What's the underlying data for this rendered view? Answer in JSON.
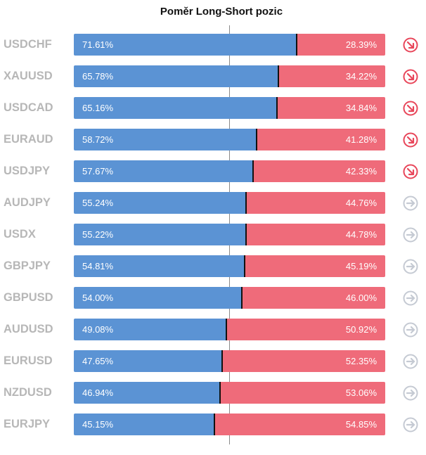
{
  "title": "Poměr Long-Short pozic",
  "colors": {
    "long": "#5b93d4",
    "short": "#ef6b7a",
    "icon_down": "#e8465a",
    "icon_neutral": "#c5cad3"
  },
  "chart_data": {
    "type": "bar",
    "title": "Poměr Long-Short pozic",
    "stacked": true,
    "orientation": "horizontal",
    "categories": [
      "USDCHF",
      "XAUUSD",
      "USDCAD",
      "EURAUD",
      "USDJPY",
      "AUDJPY",
      "USDX",
      "GBPJPY",
      "GBPUSD",
      "AUDUSD",
      "EURUSD",
      "NZDUSD",
      "EURJPY"
    ],
    "series": [
      {
        "values": [
          71.61,
          65.78,
          65.16,
          58.72,
          57.67,
          55.24,
          55.22,
          54.81,
          54.0,
          49.08,
          47.65,
          46.94,
          45.15
        ]
      },
      {
        "values": [
          28.39,
          34.22,
          34.84,
          41.28,
          42.33,
          44.76,
          44.78,
          45.19,
          46.0,
          50.92,
          52.35,
          53.06,
          54.85
        ]
      }
    ],
    "rows": [
      {
        "pair": "USDCHF",
        "long": "71.61%",
        "short": "28.39%",
        "long_value": 71.61,
        "icon": "arrow-down-right-icon"
      },
      {
        "pair": "XAUUSD",
        "long": "65.78%",
        "short": "34.22%",
        "long_value": 65.78,
        "icon": "arrow-down-right-icon"
      },
      {
        "pair": "USDCAD",
        "long": "65.16%",
        "short": "34.84%",
        "long_value": 65.16,
        "icon": "arrow-down-right-icon"
      },
      {
        "pair": "EURAUD",
        "long": "58.72%",
        "short": "41.28%",
        "long_value": 58.72,
        "icon": "arrow-down-right-icon"
      },
      {
        "pair": "USDJPY",
        "long": "57.67%",
        "short": "42.33%",
        "long_value": 57.67,
        "icon": "arrow-down-right-icon"
      },
      {
        "pair": "AUDJPY",
        "long": "55.24%",
        "short": "44.76%",
        "long_value": 55.24,
        "icon": "arrow-right-icon"
      },
      {
        "pair": "USDX",
        "long": "55.22%",
        "short": "44.78%",
        "long_value": 55.22,
        "icon": "arrow-right-icon"
      },
      {
        "pair": "GBPJPY",
        "long": "54.81%",
        "short": "45.19%",
        "long_value": 54.81,
        "icon": "arrow-right-icon"
      },
      {
        "pair": "GBPUSD",
        "long": "54.00%",
        "short": "46.00%",
        "long_value": 54.0,
        "icon": "arrow-right-icon"
      },
      {
        "pair": "AUDUSD",
        "long": "49.08%",
        "short": "50.92%",
        "long_value": 49.08,
        "icon": "arrow-right-icon"
      },
      {
        "pair": "EURUSD",
        "long": "47.65%",
        "short": "52.35%",
        "long_value": 47.65,
        "icon": "arrow-right-icon"
      },
      {
        "pair": "NZDUSD",
        "long": "46.94%",
        "short": "53.06%",
        "long_value": 46.94,
        "icon": "arrow-right-icon"
      },
      {
        "pair": "EURJPY",
        "long": "45.15%",
        "short": "54.85%",
        "long_value": 45.15,
        "icon": "arrow-right-icon"
      }
    ],
    "xlim": [
      0,
      100
    ],
    "grid": false
  }
}
